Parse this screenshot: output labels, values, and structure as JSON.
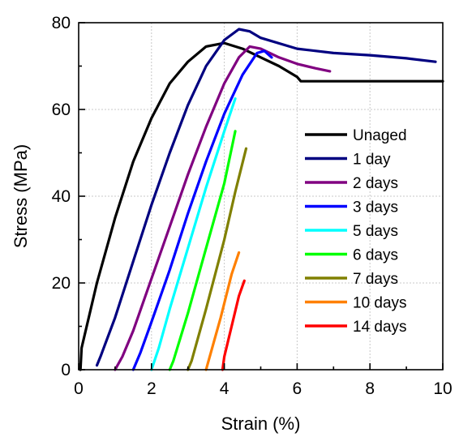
{
  "chart_data": {
    "type": "line",
    "title": "",
    "xlabel": "Strain (%)",
    "ylabel": "Stress (MPa)",
    "xlim": [
      0,
      10
    ],
    "ylim": [
      0,
      80
    ],
    "xticks": [
      "0",
      "2",
      "4",
      "6",
      "8",
      "10"
    ],
    "yticks": [
      "0",
      "20",
      "40",
      "60",
      "80"
    ],
    "grid": true,
    "legend_position": "right",
    "series": [
      {
        "name": "Unaged",
        "color": "#000000",
        "points": [
          [
            0.05,
            0
          ],
          [
            0.08,
            5
          ],
          [
            0.5,
            20
          ],
          [
            1.0,
            35
          ],
          [
            1.5,
            48
          ],
          [
            2.0,
            58
          ],
          [
            2.5,
            66
          ],
          [
            3.0,
            71
          ],
          [
            3.5,
            74.5
          ],
          [
            4.0,
            75.3
          ],
          [
            4.5,
            74
          ],
          [
            5.0,
            72
          ],
          [
            5.5,
            70
          ],
          [
            6.0,
            67.5
          ],
          [
            6.1,
            66.5
          ],
          [
            10,
            66.5
          ]
        ]
      },
      {
        "name": "1 day",
        "color": "#000080",
        "points": [
          [
            0.5,
            1
          ],
          [
            0.6,
            3
          ],
          [
            1.0,
            12
          ],
          [
            1.5,
            25
          ],
          [
            2.0,
            38
          ],
          [
            2.5,
            50
          ],
          [
            3.0,
            61
          ],
          [
            3.5,
            70
          ],
          [
            4.0,
            76
          ],
          [
            4.4,
            78.5
          ],
          [
            4.7,
            78
          ],
          [
            5.0,
            76.5
          ],
          [
            6.0,
            74
          ],
          [
            7.0,
            73
          ],
          [
            8.0,
            72.5
          ],
          [
            9.0,
            71.8
          ],
          [
            9.8,
            71
          ]
        ]
      },
      {
        "name": "2 days",
        "color": "#800080",
        "points": [
          [
            1.0,
            0
          ],
          [
            1.2,
            3
          ],
          [
            1.5,
            9
          ],
          [
            2.0,
            21
          ],
          [
            2.5,
            33
          ],
          [
            3.0,
            45
          ],
          [
            3.5,
            56
          ],
          [
            4.0,
            66
          ],
          [
            4.4,
            72
          ],
          [
            4.7,
            74.5
          ],
          [
            5.0,
            74
          ],
          [
            5.5,
            72
          ],
          [
            6.0,
            70.5
          ],
          [
            6.5,
            69.5
          ],
          [
            6.9,
            68.8
          ]
        ]
      },
      {
        "name": "3 days",
        "color": "#0000ff",
        "points": [
          [
            1.5,
            0
          ],
          [
            1.7,
            4
          ],
          [
            2.0,
            11
          ],
          [
            2.5,
            23
          ],
          [
            3.0,
            36
          ],
          [
            3.5,
            48
          ],
          [
            4.0,
            59
          ],
          [
            4.5,
            68
          ],
          [
            4.9,
            73
          ],
          [
            5.1,
            73.5
          ],
          [
            5.3,
            72
          ]
        ]
      },
      {
        "name": "5 days",
        "color": "#00ffff",
        "points": [
          [
            2.0,
            0
          ],
          [
            2.2,
            5
          ],
          [
            2.5,
            14
          ],
          [
            3.0,
            28
          ],
          [
            3.5,
            42
          ],
          [
            4.0,
            55
          ],
          [
            4.3,
            62.5
          ]
        ]
      },
      {
        "name": "6 days",
        "color": "#00ff00",
        "points": [
          [
            2.5,
            0
          ],
          [
            2.6,
            2
          ],
          [
            3.0,
            13
          ],
          [
            3.5,
            28
          ],
          [
            4.0,
            43
          ],
          [
            4.3,
            55
          ]
        ]
      },
      {
        "name": "7 days",
        "color": "#808000",
        "points": [
          [
            3.0,
            0
          ],
          [
            3.1,
            2
          ],
          [
            3.5,
            14
          ],
          [
            4.0,
            30
          ],
          [
            4.3,
            41
          ],
          [
            4.6,
            51
          ]
        ]
      },
      {
        "name": "10 days",
        "color": "#ff8000",
        "points": [
          [
            3.5,
            0
          ],
          [
            3.6,
            3
          ],
          [
            3.9,
            12
          ],
          [
            4.2,
            22
          ],
          [
            4.4,
            27
          ]
        ]
      },
      {
        "name": "14 days",
        "color": "#ff0000",
        "points": [
          [
            3.95,
            0
          ],
          [
            4.0,
            3
          ],
          [
            4.2,
            10
          ],
          [
            4.4,
            17
          ],
          [
            4.55,
            20.5
          ]
        ]
      }
    ]
  }
}
